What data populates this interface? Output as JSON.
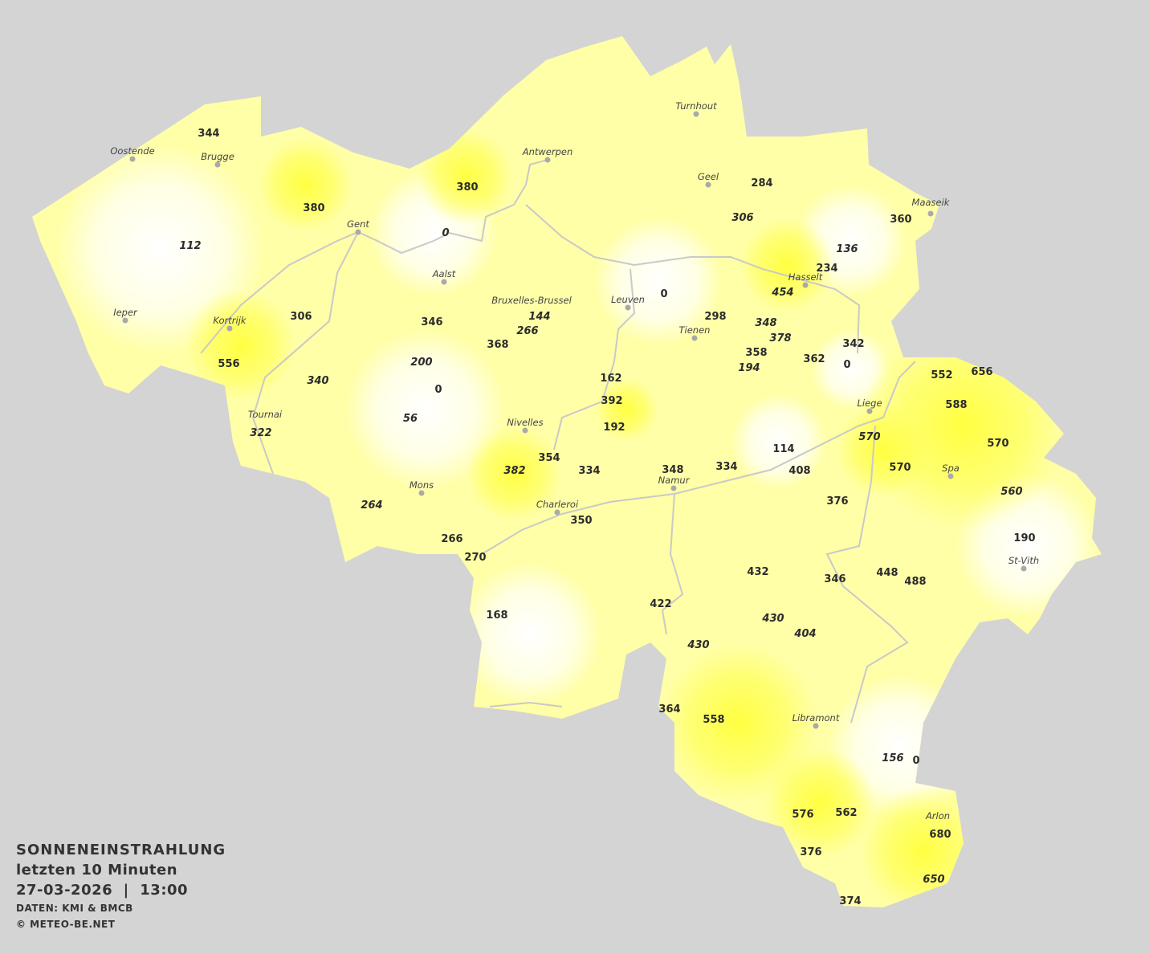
{
  "legend": {
    "title": "SONNENEINSTRAHLUNG",
    "period": "letzten 10 Minuten",
    "datetime": "27-03-2026  |  13:00",
    "source": "DATEN: KMI & BMCB",
    "copyright": "© METEO-BE.NET"
  },
  "colors": {
    "background": "#d4d4d4",
    "low": "#ffffff",
    "mid": "#ffffb0",
    "high": "#ffff40",
    "rivers": "#c8c8c8"
  },
  "cities": [
    "Turnhout",
    "Oostende",
    "Brugge",
    "Antwerpen",
    "Geel",
    "Maaseik",
    "Gent",
    "Hasselt",
    "Aalst",
    "Leuven",
    "Bruxelles-Brussel",
    "Ieper",
    "Kortrijk",
    "Tienen",
    "Liege",
    "Tournai",
    "Nivelles",
    "Spa",
    "Mons",
    "Namur",
    "Charleroi",
    "St-Vith",
    "Libramont",
    "Arlon"
  ],
  "stations": [
    {
      "v": "344",
      "italic": false
    },
    {
      "v": "380",
      "italic": false
    },
    {
      "v": "112",
      "italic": true
    },
    {
      "v": "380",
      "italic": false
    },
    {
      "v": "0",
      "italic": true
    },
    {
      "v": "306",
      "italic": false
    },
    {
      "v": "346",
      "italic": false
    },
    {
      "v": "556",
      "italic": false
    },
    {
      "v": "340",
      "italic": true
    },
    {
      "v": "200",
      "italic": true
    },
    {
      "v": "0",
      "italic": false
    },
    {
      "v": "56",
      "italic": true
    },
    {
      "v": "322",
      "italic": true
    },
    {
      "v": "144",
      "italic": true
    },
    {
      "v": "266",
      "italic": true
    },
    {
      "v": "368",
      "italic": false
    },
    {
      "v": "162",
      "italic": false
    },
    {
      "v": "392",
      "italic": false
    },
    {
      "v": "192",
      "italic": false
    },
    {
      "v": "354",
      "italic": false
    },
    {
      "v": "382",
      "italic": true
    },
    {
      "v": "334",
      "italic": false
    },
    {
      "v": "348",
      "italic": false
    },
    {
      "v": "334",
      "italic": false
    },
    {
      "v": "114",
      "italic": false
    },
    {
      "v": "408",
      "italic": false
    },
    {
      "v": "0",
      "italic": false
    },
    {
      "v": "298",
      "italic": false
    },
    {
      "v": "348",
      "italic": true
    },
    {
      "v": "378",
      "italic": true
    },
    {
      "v": "358",
      "italic": false
    },
    {
      "v": "194",
      "italic": true
    },
    {
      "v": "362",
      "italic": false
    },
    {
      "v": "342",
      "italic": false
    },
    {
      "v": "0",
      "italic": false
    },
    {
      "v": "284",
      "italic": false
    },
    {
      "v": "306",
      "italic": true
    },
    {
      "v": "136",
      "italic": true
    },
    {
      "v": "360",
      "italic": false
    },
    {
      "v": "234",
      "italic": false
    },
    {
      "v": "454",
      "italic": true
    },
    {
      "v": "552",
      "italic": false
    },
    {
      "v": "656",
      "italic": false
    },
    {
      "v": "588",
      "italic": false
    },
    {
      "v": "570",
      "italic": true
    },
    {
      "v": "570",
      "italic": false
    },
    {
      "v": "570",
      "italic": false
    },
    {
      "v": "560",
      "italic": true
    },
    {
      "v": "376",
      "italic": false
    },
    {
      "v": "190",
      "italic": false
    },
    {
      "v": "264",
      "italic": true
    },
    {
      "v": "350",
      "italic": false
    },
    {
      "v": "266",
      "italic": false
    },
    {
      "v": "270",
      "italic": false
    },
    {
      "v": "168",
      "italic": false
    },
    {
      "v": "432",
      "italic": false
    },
    {
      "v": "346",
      "italic": false
    },
    {
      "v": "448",
      "italic": false
    },
    {
      "v": "488",
      "italic": false
    },
    {
      "v": "422",
      "italic": false
    },
    {
      "v": "430",
      "italic": true
    },
    {
      "v": "404",
      "italic": true
    },
    {
      "v": "430",
      "italic": true
    },
    {
      "v": "364",
      "italic": false
    },
    {
      "v": "558",
      "italic": false
    },
    {
      "v": "156",
      "italic": true
    },
    {
      "v": "0",
      "italic": false
    },
    {
      "v": "576",
      "italic": false
    },
    {
      "v": "562",
      "italic": false
    },
    {
      "v": "680",
      "italic": false
    },
    {
      "v": "376",
      "italic": false
    },
    {
      "v": "650",
      "italic": true
    },
    {
      "v": "374",
      "italic": false
    }
  ]
}
